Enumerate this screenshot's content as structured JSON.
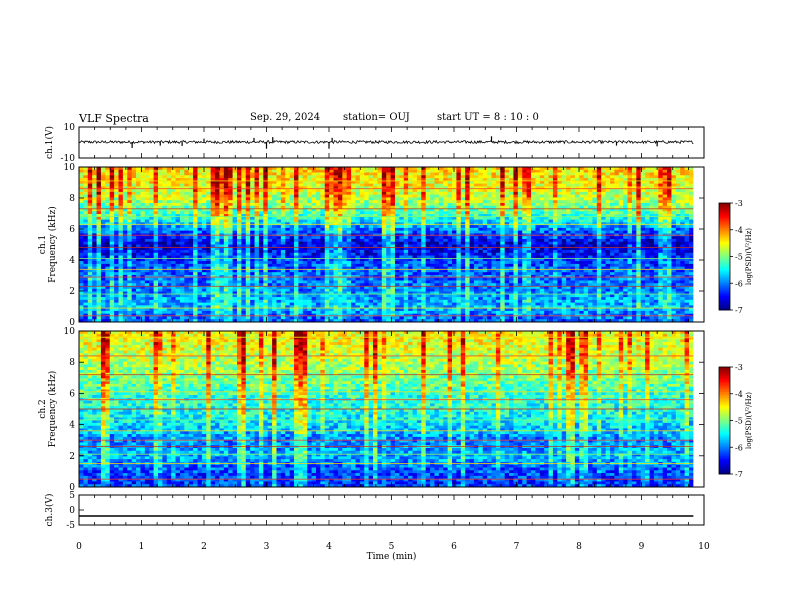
{
  "header": {
    "title": "VLF Spectra",
    "date": "Sep. 29, 2024",
    "station": "station= OUJ",
    "start": "start  UT =   8 : 10 : 0"
  },
  "chart_data": [
    {
      "type": "line",
      "panel": "ch1-waveform",
      "ylabel": "ch.1(V)",
      "ylim": [
        -10,
        10
      ],
      "yticks": [
        "10",
        "-10"
      ],
      "description_of_trace": "noisy waveform around +0.3 V with occasional spikes",
      "baseline": 0.3,
      "amplitude": 0.9,
      "spikes": [
        {
          "t": 0.85,
          "v": -3.5
        },
        {
          "t": 1.3,
          "v": -2.0
        },
        {
          "t": 1.65,
          "v": -2.2
        },
        {
          "t": 2.0,
          "v": 2.5
        },
        {
          "t": 2.8,
          "v": 3.0
        },
        {
          "t": 3.0,
          "v": -4.0
        },
        {
          "t": 3.1,
          "v": 3.5
        },
        {
          "t": 4.0,
          "v": -4.0
        },
        {
          "t": 4.05,
          "v": 3.0
        },
        {
          "t": 6.6,
          "v": 4.0
        },
        {
          "t": 8.6,
          "v": -2.0
        },
        {
          "t": 9.25,
          "v": -2.5
        }
      ]
    },
    {
      "type": "heatmap",
      "panel": "ch1-spectrogram",
      "ylabel": "ch.1 Frequency (kHz)",
      "ylim": [
        0,
        10
      ],
      "yticks": [
        "0",
        "2",
        "4",
        "6",
        "8",
        "10"
      ],
      "colorbar": {
        "label": "log(PSD)(V²/Hz)",
        "range": [
          -7,
          -3
        ],
        "ticks": [
          "-3",
          "-4",
          "-5",
          "-6",
          "-7"
        ]
      },
      "levels_by_freq_kHz": [
        {
          "f": 0,
          "v": -6.2
        },
        {
          "f": 1,
          "v": -5.8
        },
        {
          "f": 2,
          "v": -6.0
        },
        {
          "f": 3,
          "v": -6.1
        },
        {
          "f": 4,
          "v": -6.3
        },
        {
          "f": 5,
          "v": -6.7
        },
        {
          "f": 6,
          "v": -6.0
        },
        {
          "f": 7,
          "v": -5.2
        },
        {
          "f": 8,
          "v": -4.8
        },
        {
          "f": 9,
          "v": -4.5
        },
        {
          "f": 10,
          "v": -4.4
        }
      ],
      "line_freqs_kHz": [
        0.4,
        0.9,
        1.8,
        2.3,
        2.9,
        3.4,
        4.1,
        4.8,
        5.6,
        6.3,
        6.8,
        7.3,
        8.6,
        9.1
      ]
    },
    {
      "type": "heatmap",
      "panel": "ch2-spectrogram",
      "ylabel": "ch.2 Frequency (kHz)",
      "ylim": [
        0,
        10
      ],
      "yticks": [
        "0",
        "2",
        "4",
        "6",
        "8",
        "10"
      ],
      "colorbar": {
        "label": "log(PSD)(V²/Hz)",
        "range": [
          -7,
          -3
        ],
        "ticks": [
          "-3",
          "-4",
          "-5",
          "-6",
          "-7"
        ]
      },
      "levels_by_freq_kHz": [
        {
          "f": 0,
          "v": -6.3
        },
        {
          "f": 1,
          "v": -6.2
        },
        {
          "f": 2,
          "v": -5.8
        },
        {
          "f": 3,
          "v": -6.0
        },
        {
          "f": 4,
          "v": -5.6
        },
        {
          "f": 5,
          "v": -5.4
        },
        {
          "f": 6,
          "v": -5.3
        },
        {
          "f": 7,
          "v": -5.0
        },
        {
          "f": 8,
          "v": -4.8
        },
        {
          "f": 9,
          "v": -4.6
        },
        {
          "f": 10,
          "v": -4.5
        }
      ],
      "line_freqs_kHz": [
        0.5,
        1.5,
        2.1,
        2.6,
        3.0,
        3.6,
        4.3,
        5.0,
        5.6,
        6.1,
        6.8,
        7.2,
        8.4,
        9.6
      ]
    },
    {
      "type": "line",
      "panel": "ch3-waveform",
      "ylabel": "ch.3(V)",
      "ylim": [
        -5,
        5
      ],
      "yticks": [
        "5",
        "0",
        "-5"
      ],
      "flat_value": -2.0
    }
  ],
  "time_axis": {
    "xlabel": "Time (min)",
    "xlim": [
      0,
      10
    ],
    "ticks": [
      "0",
      "1",
      "2",
      "3",
      "4",
      "5",
      "6",
      "7",
      "8",
      "9",
      "10"
    ],
    "data_end": 9.83
  }
}
